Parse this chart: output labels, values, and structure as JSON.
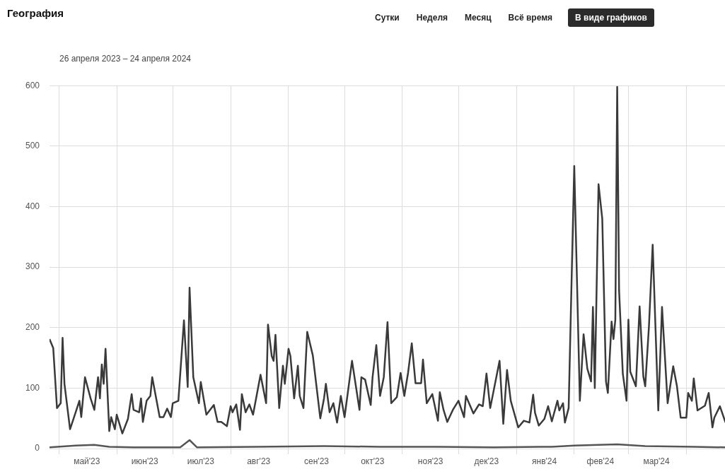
{
  "chart_data": {
    "type": "line",
    "title": "География",
    "subtitle": "26 апреля 2023 – 24 апреля 2024",
    "annotations": [
      "Сутки",
      "Неделя",
      "Месяц",
      "Всё время",
      "В виде графиков"
    ],
    "series": [
      {
        "color": "#3a3a3a",
        "x": [
          "2023-04-26",
          "2023-04-28",
          "2023-04-30",
          "2023-05-02",
          "2023-05-03",
          "2023-05-04",
          "2023-05-07",
          "2023-05-10",
          "2023-05-12",
          "2023-05-13",
          "2023-05-15",
          "2023-05-18",
          "2023-05-20",
          "2023-05-22",
          "2023-05-23",
          "2023-05-24",
          "2023-05-25",
          "2023-05-26",
          "2023-05-28",
          "2023-05-29",
          "2023-05-31",
          "2023-06-01",
          "2023-06-04",
          "2023-06-07",
          "2023-06-09",
          "2023-06-10",
          "2023-06-13",
          "2023-06-14",
          "2023-06-15",
          "2023-06-17",
          "2023-06-19",
          "2023-06-20",
          "2023-06-24",
          "2023-06-26",
          "2023-06-28",
          "2023-06-30",
          "2023-07-01",
          "2023-07-04",
          "2023-07-07",
          "2023-07-09",
          "2023-07-10",
          "2023-07-12",
          "2023-07-15",
          "2023-07-16",
          "2023-07-19",
          "2023-07-23",
          "2023-07-25",
          "2023-07-27",
          "2023-07-30",
          "2023-08-01",
          "2023-08-02",
          "2023-08-04",
          "2023-08-06",
          "2023-08-07",
          "2023-08-09",
          "2023-08-11",
          "2023-08-13",
          "2023-08-17",
          "2023-08-20",
          "2023-08-21",
          "2023-08-23",
          "2023-08-24",
          "2023-08-25",
          "2023-08-27",
          "2023-08-29",
          "2023-08-30",
          "2023-09-01",
          "2023-09-02",
          "2023-09-04",
          "2023-09-06",
          "2023-09-07",
          "2023-09-09",
          "2023-09-11",
          "2023-09-14",
          "2023-09-18",
          "2023-09-20",
          "2023-09-21",
          "2023-09-23",
          "2023-09-25",
          "2023-09-27",
          "2023-09-29",
          "2023-10-01",
          "2023-10-05",
          "2023-10-09",
          "2023-10-10",
          "2023-10-12",
          "2023-10-15",
          "2023-10-16",
          "2023-10-18",
          "2023-10-20",
          "2023-10-22",
          "2023-10-24",
          "2023-10-26",
          "2023-10-29",
          "2023-10-31",
          "2023-11-02",
          "2023-11-04",
          "2023-11-06",
          "2023-11-08",
          "2023-11-11",
          "2023-11-12",
          "2023-11-14",
          "2023-11-17",
          "2023-11-20",
          "2023-11-21",
          "2023-11-23",
          "2023-11-25",
          "2023-11-28",
          "2023-12-01",
          "2023-12-04",
          "2023-12-05",
          "2023-12-09",
          "2023-12-12",
          "2023-12-14",
          "2023-12-16",
          "2023-12-18",
          "2023-12-23",
          "2023-12-25",
          "2023-12-27",
          "2023-12-29",
          "2024-01-02",
          "2024-01-05",
          "2024-01-08",
          "2024-01-10",
          "2024-01-11",
          "2024-01-13",
          "2024-01-16",
          "2024-01-18",
          "2024-01-20",
          "2024-01-23",
          "2024-01-24",
          "2024-01-26",
          "2024-01-27",
          "2024-01-29",
          "2024-02-01",
          "2024-02-04",
          "2024-02-06",
          "2024-02-08",
          "2024-02-10",
          "2024-02-11",
          "2024-02-12",
          "2024-02-14",
          "2024-02-16",
          "2024-02-18",
          "2024-02-19",
          "2024-02-21",
          "2024-02-22",
          "2024-02-23",
          "2024-02-24",
          "2024-02-25",
          "2024-02-27",
          "2024-02-29",
          "2024-03-01",
          "2024-03-02",
          "2024-03-05",
          "2024-03-07",
          "2024-03-09",
          "2024-03-10",
          "2024-03-12",
          "2024-03-14",
          "2024-03-17",
          "2024-03-19",
          "2024-03-22",
          "2024-03-25",
          "2024-03-27",
          "2024-03-29",
          "2024-04-01",
          "2024-04-02",
          "2024-04-04",
          "2024-04-05",
          "2024-04-07",
          "2024-04-11",
          "2024-04-13",
          "2024-04-15",
          "2024-04-16",
          "2024-04-19",
          "2024-04-22"
        ],
        "values": [
          181,
          166,
          67,
          75,
          183,
          107,
          32,
          60,
          79,
          52,
          118,
          83,
          64,
          118,
          83,
          139,
          107,
          165,
          29,
          52,
          32,
          56,
          25,
          49,
          90,
          64,
          60,
          83,
          44,
          79,
          87,
          118,
          52,
          52,
          66,
          52,
          75,
          79,
          212,
          102,
          266,
          118,
          75,
          110,
          56,
          72,
          44,
          44,
          37,
          70,
          60,
          73,
          31,
          90,
          60,
          73,
          56,
          122,
          75,
          205,
          153,
          145,
          188,
          67,
          137,
          107,
          165,
          153,
          83,
          137,
          87,
          67,
          193,
          154,
          50,
          83,
          107,
          60,
          75,
          43,
          87,
          52,
          145,
          64,
          118,
          114,
          72,
          118,
          171,
          87,
          118,
          209,
          75,
          85,
          125,
          87,
          125,
          174,
          108,
          108,
          147,
          75,
          90,
          46,
          93,
          64,
          44,
          64,
          79,
          52,
          87,
          58,
          73,
          70,
          124,
          67,
          145,
          41,
          130,
          79,
          35,
          46,
          43,
          89,
          59,
          38,
          49,
          70,
          45,
          79,
          63,
          75,
          43,
          67,
          467,
          79,
          189,
          132,
          111,
          234,
          100,
          437,
          380,
          111,
          92,
          210,
          181,
          213,
          598,
          262,
          124,
          79,
          213,
          127,
          103,
          235,
          119,
          103,
          202,
          337,
          63,
          234,
          75,
          136,
          103,
          51,
          51,
          92,
          79,
          116,
          63,
          71,
          92,
          35,
          51,
          70,
          43
        ]
      },
      {
        "color": "#555555",
        "x": [
          "2023-04-26",
          "2023-05-10",
          "2023-05-20",
          "2023-05-28",
          "2023-06-10",
          "2023-07-05",
          "2023-07-10",
          "2023-07-14",
          "2023-08-15",
          "2023-09-20",
          "2023-10-20",
          "2023-11-20",
          "2023-12-20",
          "2024-01-20",
          "2024-02-01",
          "2024-02-14",
          "2024-02-24",
          "2024-03-10",
          "2024-04-05",
          "2024-04-22"
        ],
        "values": [
          2,
          5,
          6,
          3,
          2,
          2,
          14,
          2,
          3,
          4,
          3,
          3,
          2,
          3,
          5,
          6,
          7,
          4,
          3,
          2
        ]
      }
    ],
    "xlim": [
      "2023-04-26",
      "2024-04-24"
    ],
    "xticks": [
      {
        "value": "2023-05-01",
        "label": null
      },
      {
        "value": "2023-05-16",
        "label": "май'23"
      },
      {
        "value": "2023-06-01",
        "label": null
      },
      {
        "value": "2023-06-16",
        "label": "июн'23"
      },
      {
        "value": "2023-07-01",
        "label": null
      },
      {
        "value": "2023-07-16",
        "label": "июл'23"
      },
      {
        "value": "2023-08-01",
        "label": null
      },
      {
        "value": "2023-08-16",
        "label": "авг'23"
      },
      {
        "value": "2023-09-01",
        "label": null
      },
      {
        "value": "2023-09-16",
        "label": "сен'23"
      },
      {
        "value": "2023-10-01",
        "label": null
      },
      {
        "value": "2023-10-16",
        "label": "окт'23"
      },
      {
        "value": "2023-11-01",
        "label": null
      },
      {
        "value": "2023-11-16",
        "label": "ноя'23"
      },
      {
        "value": "2023-12-01",
        "label": null
      },
      {
        "value": "2023-12-16",
        "label": "дек'23"
      },
      {
        "value": "2024-01-01",
        "label": null
      },
      {
        "value": "2024-01-16",
        "label": "янв'24"
      },
      {
        "value": "2024-02-01",
        "label": null
      },
      {
        "value": "2024-02-15",
        "label": "фев'24"
      },
      {
        "value": "2024-03-01",
        "label": null
      },
      {
        "value": "2024-03-16",
        "label": "мар'24"
      },
      {
        "value": "2024-04-01",
        "label": null
      }
    ],
    "ylim": [
      0,
      600
    ],
    "yticks": [
      0,
      100,
      200,
      300,
      400,
      500,
      600
    ],
    "grid": true,
    "legend": false,
    "marker": "none",
    "line_style": "solid"
  }
}
